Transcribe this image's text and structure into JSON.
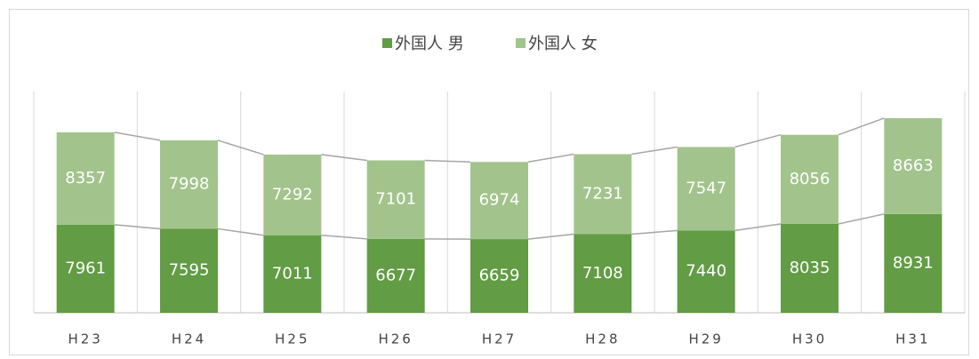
{
  "chart_data": {
    "type": "stacked_bar",
    "categories": [
      "H23",
      "H24",
      "H25",
      "H26",
      "H27",
      "H28",
      "H29",
      "H30",
      "H31"
    ],
    "series": [
      {
        "name": "外国人 男",
        "color": "#629c44",
        "values": [
          7961,
          7595,
          7011,
          6677,
          6659,
          7108,
          7440,
          8035,
          8931
        ]
      },
      {
        "name": "外国人 女",
        "color": "#a2c48c",
        "values": [
          8357,
          7998,
          7292,
          7101,
          6974,
          7231,
          7547,
          8056,
          8663
        ]
      }
    ],
    "ylim": [
      0,
      20000
    ],
    "legend": "top",
    "series_lines": true
  }
}
